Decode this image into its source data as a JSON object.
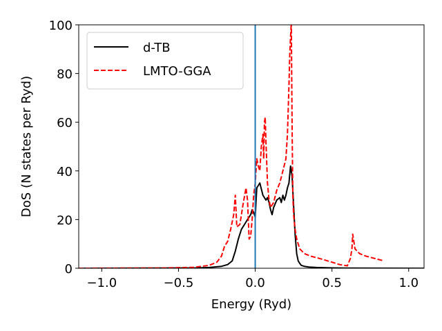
{
  "chart_data": {
    "type": "line",
    "xlabel": "Energy (Ryd)",
    "ylabel": "DoS (N states per Ryd)",
    "xlim": [
      -1.15,
      1.1
    ],
    "ylim": [
      0,
      100
    ],
    "xticks": [
      -1.0,
      -0.5,
      0.0,
      0.5,
      1.0
    ],
    "xtick_labels": [
      "−1.0",
      "−0.5",
      "0.0",
      "0.5",
      "1.0"
    ],
    "yticks": [
      0,
      20,
      40,
      60,
      80,
      100
    ],
    "ytick_labels": [
      "0",
      "20",
      "40",
      "60",
      "80",
      "100"
    ],
    "grid": false,
    "legend_position": "top-left",
    "vline": {
      "x": 0.0,
      "color": "#1f77b4"
    },
    "series": [
      {
        "name": "d-TB",
        "color": "#000000",
        "dash": "solid",
        "x": [
          -1.15,
          -0.4,
          -0.3,
          -0.22,
          -0.18,
          -0.15,
          -0.13,
          -0.11,
          -0.09,
          -0.07,
          -0.05,
          -0.03,
          -0.02,
          -0.01,
          0.0,
          0.01,
          0.02,
          0.03,
          0.05,
          0.07,
          0.08,
          0.09,
          0.1,
          0.11,
          0.12,
          0.14,
          0.16,
          0.17,
          0.18,
          0.19,
          0.2,
          0.21,
          0.22,
          0.23,
          0.24,
          0.25,
          0.26,
          0.27,
          0.28,
          0.29,
          0.3,
          0.32,
          0.35,
          0.4,
          0.5,
          0.6,
          0.8,
          1.1
        ],
        "y": [
          0,
          0.1,
          0.3,
          0.8,
          1.5,
          3,
          7,
          12,
          16,
          18,
          20,
          22,
          24,
          23,
          21,
          33,
          34,
          35,
          30,
          28,
          29,
          27,
          24,
          22,
          25,
          28,
          29,
          27,
          30,
          28,
          30,
          33,
          35,
          42,
          38,
          26,
          14,
          6,
          3,
          2,
          1.2,
          0.8,
          0.5,
          0.3,
          0.15,
          0.08,
          0.02,
          0
        ]
      },
      {
        "name": "LMTO-GGA",
        "color": "#ff0000",
        "dash": "dashed",
        "x": [
          -1.15,
          -0.6,
          -0.4,
          -0.3,
          -0.25,
          -0.22,
          -0.2,
          -0.18,
          -0.16,
          -0.14,
          -0.13,
          -0.12,
          -0.1,
          -0.08,
          -0.06,
          -0.05,
          -0.04,
          -0.03,
          -0.02,
          -0.01,
          0.0,
          0.01,
          0.02,
          0.03,
          0.04,
          0.05,
          0.055,
          0.06,
          0.065,
          0.07,
          0.08,
          0.09,
          0.1,
          0.11,
          0.12,
          0.14,
          0.16,
          0.18,
          0.2,
          0.21,
          0.22,
          0.225,
          0.23,
          0.235,
          0.24,
          0.245,
          0.25,
          0.26,
          0.27,
          0.29,
          0.32,
          0.36,
          0.42,
          0.5,
          0.55,
          0.6,
          0.62,
          0.63,
          0.635,
          0.65,
          0.68,
          0.72,
          0.78,
          0.84
        ],
        "y": [
          0,
          0.1,
          0.4,
          1.2,
          2.5,
          5,
          9,
          11,
          16,
          22,
          30,
          17,
          18,
          26,
          33,
          28,
          12,
          13,
          20,
          30,
          35,
          45,
          42,
          40,
          50,
          55,
          45,
          60,
          62,
          52,
          35,
          28,
          25,
          26,
          27,
          32,
          35,
          40,
          45,
          55,
          75,
          88,
          95,
          101,
          60,
          30,
          22,
          16,
          12,
          8,
          6,
          5,
          4,
          2.5,
          1.5,
          1,
          4,
          8,
          14,
          8,
          6,
          5,
          4,
          3
        ]
      }
    ]
  }
}
